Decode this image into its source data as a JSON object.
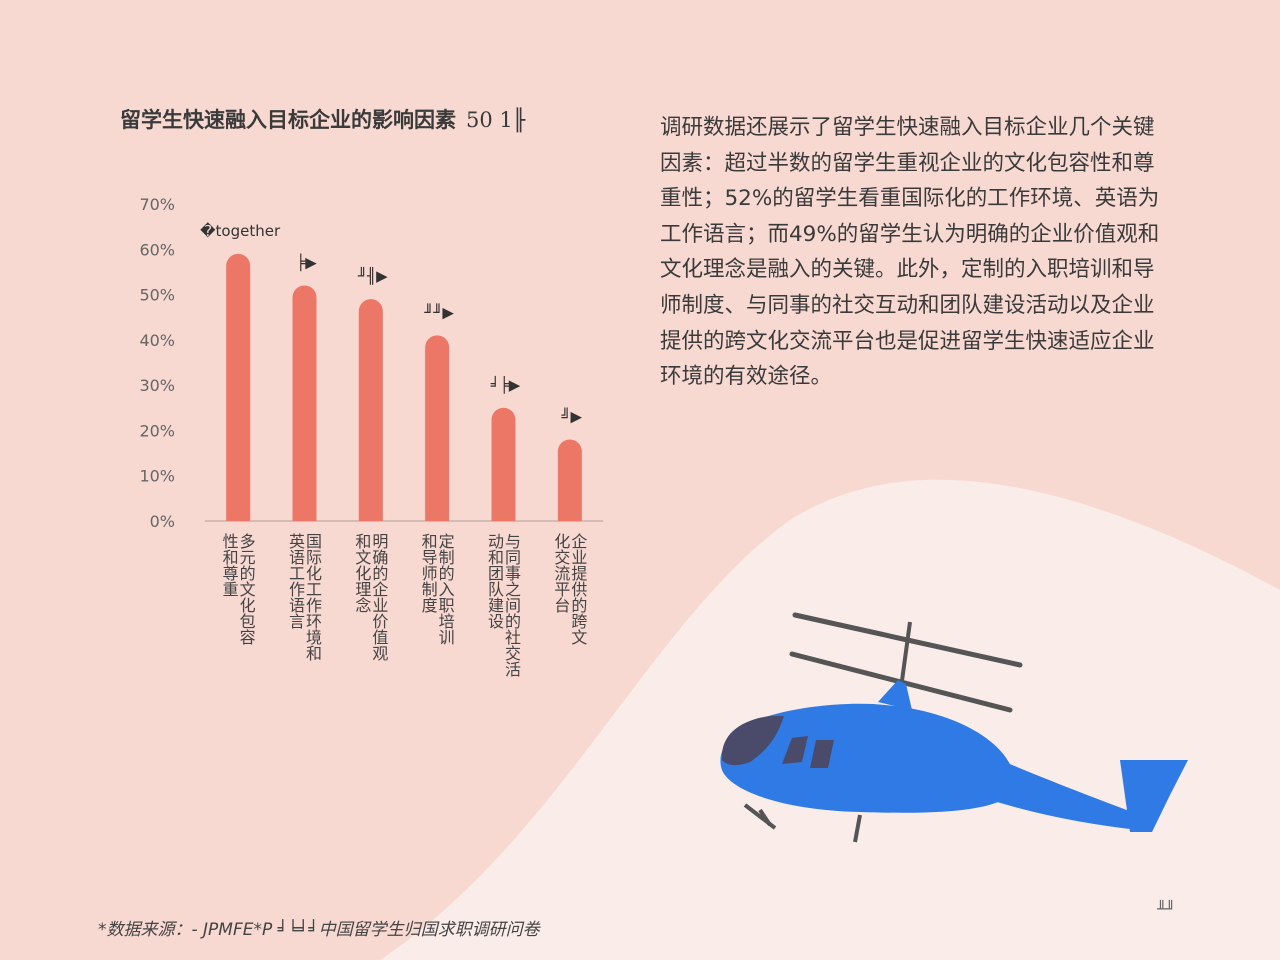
{
  "chart_data": {
    "type": "bar",
    "title": "留学生快速融入目标企业的影响因素",
    "title_suffix": "50 1╟",
    "categories": [
      "多元的文化包容性和尊重",
      "国际化工作环境和英语工作语言",
      "明确的企业价值观和文化理念",
      "定制的入职培训和导师制度",
      "与同事之间的社交活动和团队建设",
      "企业提供的跨文化交流平台"
    ],
    "category_lines": [
      [
        "多元的文化包容",
        "性和尊重"
      ],
      [
        "国际化工作环境和",
        "英语工作语言"
      ],
      [
        "明确的企业价值观",
        "和文化理念"
      ],
      [
        "定制的入职培训",
        "和导师制度"
      ],
      [
        "与同事之间的社交活",
        "动和团队建设"
      ],
      [
        "企业提供的跨文",
        "化交流平台"
      ]
    ],
    "values": [
      59,
      52,
      49,
      41,
      25,
      18
    ],
    "data_labels": [
      "�together",
      "╞▶",
      "╜╢▶",
      "╜╜▶",
      "╛╞▶",
      "╝▶"
    ],
    "y_ticks": [
      "0%",
      "10%",
      "20%",
      "30%",
      "40%",
      "50%",
      "60%",
      "70%"
    ],
    "ylim": [
      0,
      70
    ],
    "bar_color": "#ec7766",
    "grid": false,
    "legend": "none"
  },
  "paragraph": "调研数据还展示了留学生快速融入目标企业几个关键因素：超过半数的留学生重视企业的文化包容性和尊重性；52%的留学生看重国际化的工作环境、英语为工作语言；而49%的留学生认为明确的企业价值观和文化理念是融入的关键。此外，定制的入职培训和导师制度、与同事的社交互动和团队建设活动以及企业提供的跨文化交流平台也是促进留学生快速适应企业环境的有效途径。",
  "source": "*数据来源：- JPMFE*P ╛╘╛╛中国留学生归国求职调研问卷",
  "page_mark": "╨╜",
  "colors": {
    "background": "#f7d9d2",
    "wave": "#f9ece9",
    "bar": "#ec7766",
    "helicopter_body": "#2f7ae5",
    "helicopter_dark": "#4a4a6a"
  }
}
